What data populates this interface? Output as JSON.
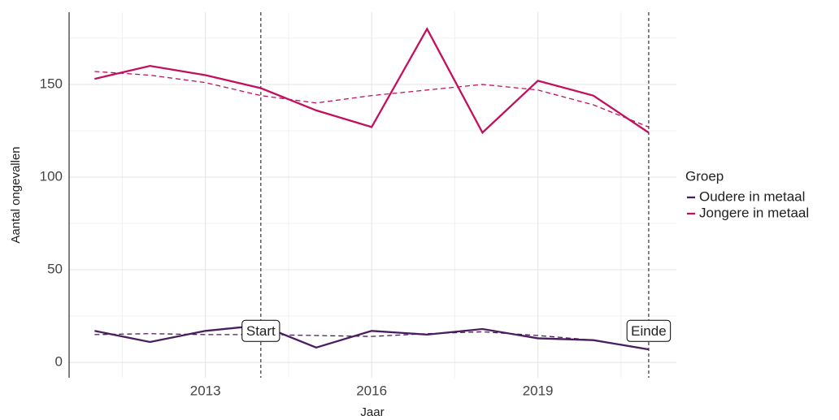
{
  "chart_data": {
    "type": "line",
    "x_label": "Jaar",
    "y_label": "Aantal ongevallen",
    "legend_title": "Groep",
    "legend": "right",
    "grid": true,
    "x": [
      2011,
      2012,
      2013,
      2014,
      2015,
      2016,
      2017,
      2018,
      2019,
      2020,
      2021
    ],
    "xlim": [
      2010.54,
      2021.5
    ],
    "xticks": [
      2013,
      2016,
      2019
    ],
    "ylim": [
      -8.3,
      189
    ],
    "yticks": [
      0,
      50,
      100,
      150
    ],
    "series": [
      {
        "name": "Oudere in metaal",
        "color": "#4a1d5f",
        "values": [
          17,
          11,
          17,
          20,
          8,
          17,
          15,
          18,
          13,
          12,
          7
        ],
        "trend": [
          15,
          15.5,
          15,
          15,
          14.5,
          14,
          15.5,
          16.5,
          14.5,
          12,
          7
        ]
      },
      {
        "name": "Jongere in metaal",
        "color": "#c2105e",
        "values": [
          153,
          160,
          155,
          148,
          136,
          127,
          180,
          124,
          152,
          144,
          124
        ],
        "trend": [
          157,
          155,
          151,
          144,
          140,
          144,
          147,
          150,
          147,
          139,
          127
        ]
      }
    ],
    "annotations": [
      {
        "x": 2014,
        "y": 17,
        "label": "Start"
      },
      {
        "x": 2021,
        "y": 17,
        "label": "Einde"
      }
    ]
  }
}
